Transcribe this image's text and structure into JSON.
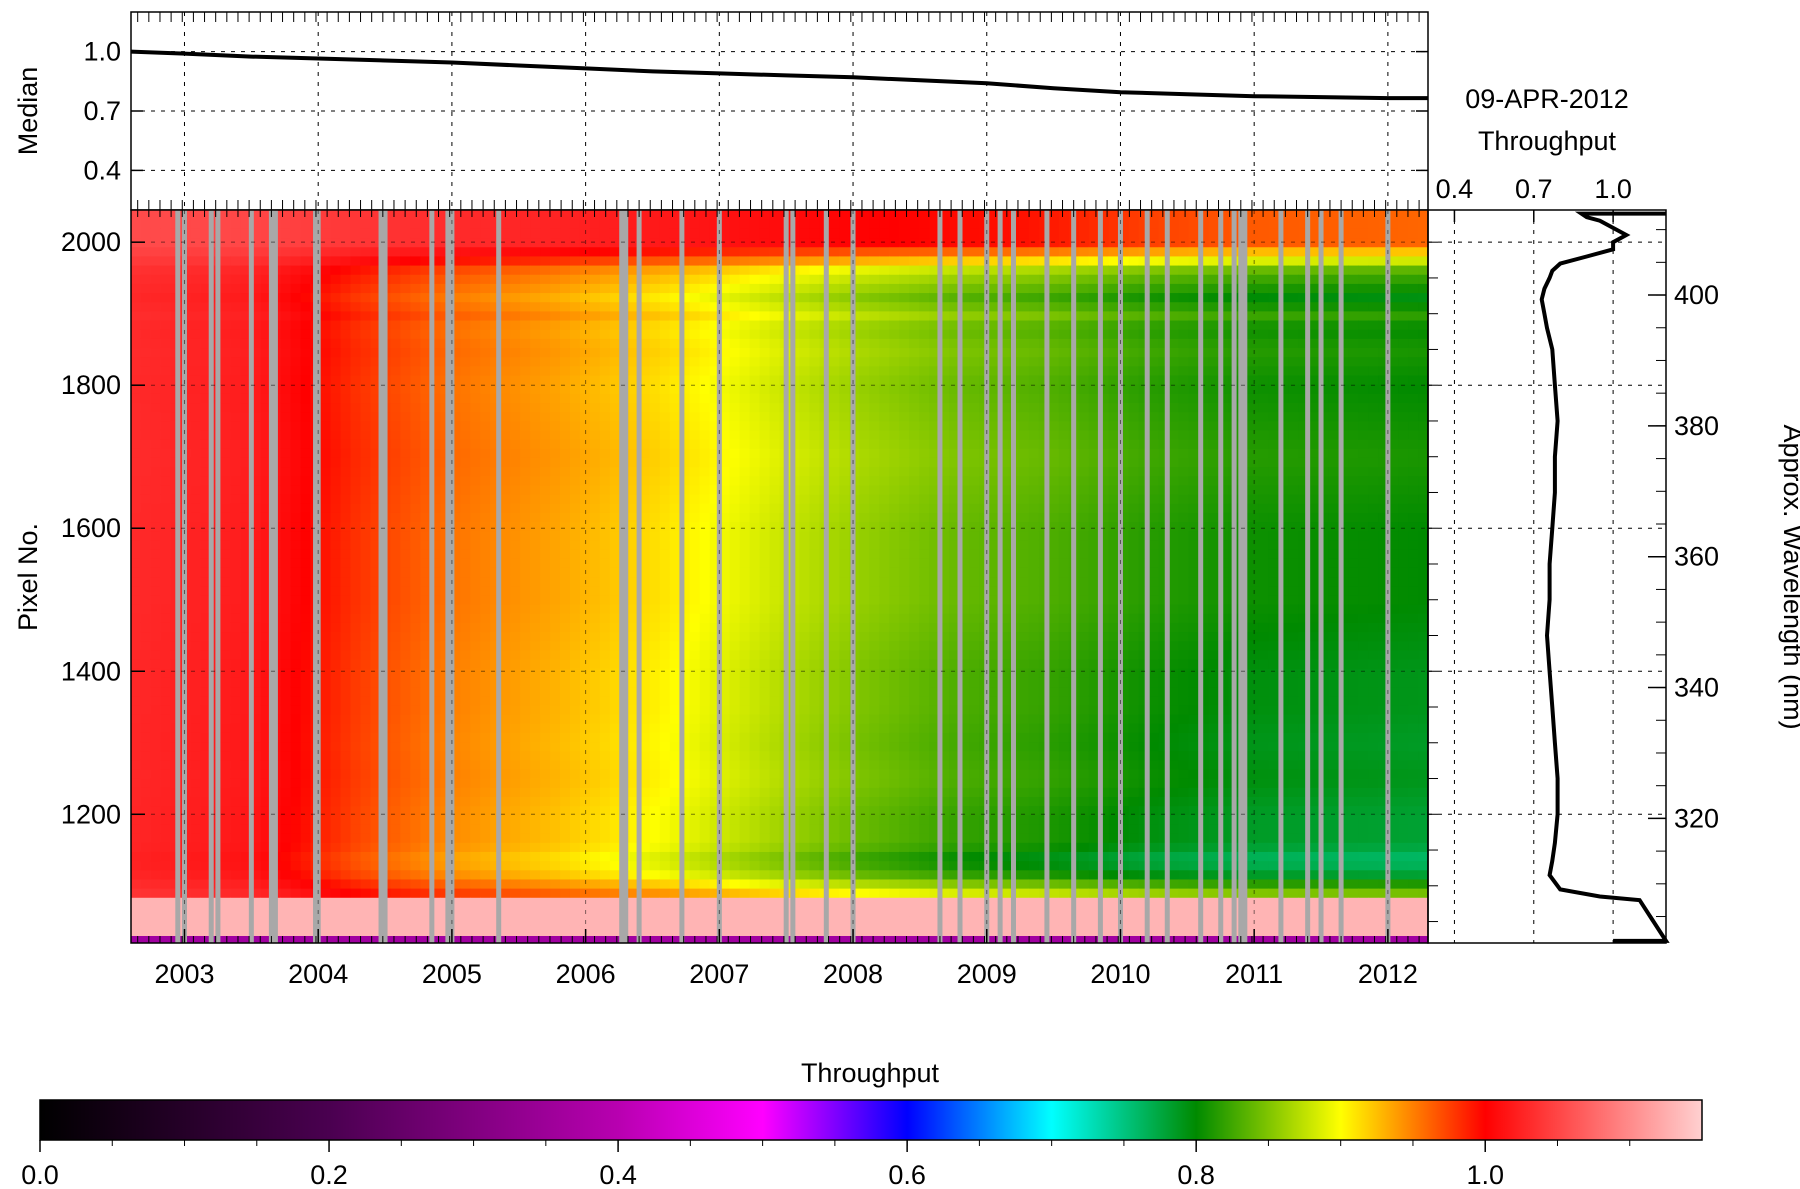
{
  "chart_data": [
    {
      "id": "median",
      "type": "line",
      "ylabel": "Median",
      "xlim": [
        2002.6,
        2012.3
      ],
      "ylim": [
        0.2,
        1.2
      ],
      "yticks": [
        1.0,
        0.7,
        0.4
      ],
      "ytick_labels": [
        "1.0",
        "0.7",
        "0.4"
      ],
      "grid": true,
      "series": [
        {
          "x": [
            2002.6,
            2003.0,
            2003.5,
            2004.0,
            2004.5,
            2005.0,
            2005.5,
            2006.0,
            2006.5,
            2007.0,
            2007.5,
            2008.0,
            2008.5,
            2009.0,
            2009.5,
            2010.0,
            2010.5,
            2011.0,
            2011.5,
            2012.0,
            2012.3
          ],
          "y": [
            1.0,
            0.99,
            0.975,
            0.965,
            0.955,
            0.945,
            0.93,
            0.915,
            0.9,
            0.89,
            0.88,
            0.87,
            0.855,
            0.84,
            0.815,
            0.795,
            0.785,
            0.775,
            0.77,
            0.765,
            0.765
          ]
        }
      ]
    },
    {
      "id": "heatmap",
      "type": "heatmap",
      "ylabel": "Pixel No.",
      "xlim": [
        2002.6,
        2012.3
      ],
      "ylim": [
        1020,
        2045
      ],
      "xticks": [
        2003,
        2004,
        2005,
        2006,
        2007,
        2008,
        2009,
        2010,
        2011,
        2012
      ],
      "xtick_labels": [
        "2003",
        "2004",
        "2005",
        "2006",
        "2007",
        "2008",
        "2009",
        "2010",
        "2011",
        "2012"
      ],
      "yticks": [
        2000,
        1800,
        1600,
        1400,
        1200
      ],
      "ytick_labels": [
        "2000",
        "1800",
        "1600",
        "1400",
        "1200"
      ],
      "grid": true,
      "time_knots": [
        2002.6,
        2003.5,
        2004.3,
        2005.0,
        2005.8,
        2006.6,
        2007.3,
        2008.0,
        2008.8,
        2009.5,
        2010.2,
        2011.0,
        2012.3
      ],
      "median_knots": [
        1.03,
        1.02,
        0.98,
        0.955,
        0.935,
        0.91,
        0.885,
        0.86,
        0.84,
        0.83,
        0.815,
        0.805,
        0.8
      ],
      "pixel_profile": {
        "pixels": [
          1025,
          1060,
          1075,
          1085,
          1100,
          1120,
          1140,
          1160,
          1200,
          1250,
          1300,
          1350,
          1400,
          1450,
          1500,
          1550,
          1600,
          1650,
          1700,
          1750,
          1800,
          1850,
          1880,
          1900,
          1920,
          1940,
          1960,
          1980,
          2000,
          2045
        ],
        "offsets": [
          0.3,
          0.3,
          0.16,
          0.06,
          0.02,
          -0.03,
          -0.04,
          -0.02,
          -0.02,
          -0.01,
          -0.015,
          -0.01,
          -0.01,
          -0.005,
          0.0,
          0.0,
          0.0,
          0.005,
          0.01,
          0.005,
          0.0,
          0.01,
          0.0,
          0.02,
          -0.01,
          0.01,
          0.03,
          0.1,
          0.16,
          0.16
        ]
      },
      "gap_dates": [
        2002.95,
        2003.0,
        2003.2,
        2003.25,
        2003.5,
        2003.65,
        2003.68,
        2003.98,
        2004.0,
        2004.47,
        2004.5,
        2004.85,
        2004.97,
        2005.0,
        2005.35,
        2006.27,
        2006.3,
        2006.4,
        2006.72,
        2007.0,
        2007.5,
        2007.55,
        2007.8,
        2008.0,
        2008.65,
        2008.8,
        2009.0,
        2009.1,
        2009.2,
        2009.45,
        2009.65,
        2009.85,
        2010.0,
        2010.2,
        2010.35,
        2010.6,
        2010.75,
        2010.85,
        2010.9,
        2010.93,
        2011.2,
        2011.4,
        2011.5,
        2011.65,
        2012.0
      ]
    },
    {
      "id": "profile",
      "type": "line",
      "title": "09-APR-2012",
      "xlabel": "Throughput",
      "ylabel_right": "Approx. Wavelength (nm)",
      "xlim": [
        0.3,
        1.2
      ],
      "xticks": [
        0.4,
        0.7,
        1.0
      ],
      "xtick_labels": [
        "0.4",
        "0.7",
        "1.0"
      ],
      "ylim": [
        1020,
        2045
      ],
      "yticks_right": [
        400,
        380,
        360,
        340,
        320
      ],
      "ytick_right_labels": [
        "400",
        "380",
        "360",
        "340",
        "320"
      ],
      "grid": true,
      "series": [
        {
          "x": [
            1.0,
            1.2,
            1.1,
            0.95,
            0.8,
            0.76,
            0.77,
            0.78,
            0.79,
            0.79,
            0.78,
            0.77,
            0.76,
            0.75,
            0.76,
            0.76,
            0.77,
            0.78,
            0.78,
            0.79,
            0.78,
            0.77,
            0.75,
            0.74,
            0.73,
            0.74,
            0.76,
            0.77,
            0.8,
            0.9,
            1.0,
            1.0,
            1.05,
            1.0,
            0.95,
            0.9,
            0.88,
            1.2
          ],
          "y": [
            1023,
            1023,
            1080,
            1085,
            1095,
            1115,
            1135,
            1160,
            1200,
            1250,
            1300,
            1350,
            1400,
            1450,
            1500,
            1550,
            1600,
            1650,
            1700,
            1750,
            1800,
            1850,
            1880,
            1900,
            1920,
            1935,
            1950,
            1960,
            1970,
            1980,
            1990,
            2000,
            2010,
            2020,
            2030,
            2035,
            2040,
            2040
          ]
        }
      ]
    },
    {
      "id": "colorbar",
      "type": "colorbar",
      "title": "Throughput",
      "range": [
        0.0,
        1.15
      ],
      "ticks": [
        0.0,
        0.2,
        0.4,
        0.6,
        0.8,
        1.0
      ],
      "tick_labels": [
        "0.0",
        "0.2",
        "0.4",
        "0.6",
        "0.8",
        "1.0"
      ],
      "colormap": [
        {
          "v": 0.0,
          "c": "#000000"
        },
        {
          "v": 0.2,
          "c": "#4a0050"
        },
        {
          "v": 0.4,
          "c": "#b800b0"
        },
        {
          "v": 0.5,
          "c": "#ff00ff"
        },
        {
          "v": 0.6,
          "c": "#0000ff"
        },
        {
          "v": 0.7,
          "c": "#00ffff"
        },
        {
          "v": 0.8,
          "c": "#008a00"
        },
        {
          "v": 0.9,
          "c": "#ffff00"
        },
        {
          "v": 1.0,
          "c": "#ff0000"
        },
        {
          "v": 1.15,
          "c": "#ffd0d0"
        }
      ]
    }
  ],
  "colors": {
    "median_line": "#000000",
    "gap_bars": "#a8a8a8",
    "grid": "#000000"
  }
}
